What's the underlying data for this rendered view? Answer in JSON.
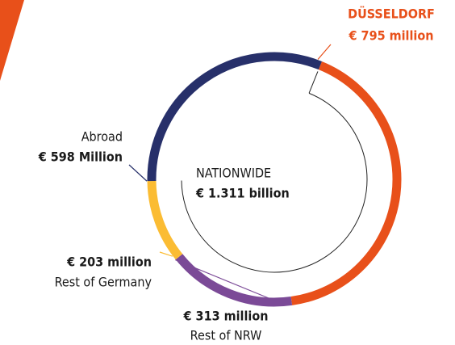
{
  "chart_data": {
    "type": "donut",
    "categories": [
      "DÜSSELDORF",
      "Rest of NRW",
      "Rest of Germany",
      "Abroad"
    ],
    "values": [
      795,
      313,
      203,
      598
    ],
    "value_labels": [
      "€ 795 million",
      "€ 313 million",
      "€ 203 million",
      "€ 598 Million"
    ],
    "colors": [
      "#e8501a",
      "#7b4a97",
      "#fbbc33",
      "#27306a"
    ],
    "total": {
      "name": "NATIONWIDE",
      "value": 1311,
      "value_label": "€ 1.311 billion"
    }
  }
}
